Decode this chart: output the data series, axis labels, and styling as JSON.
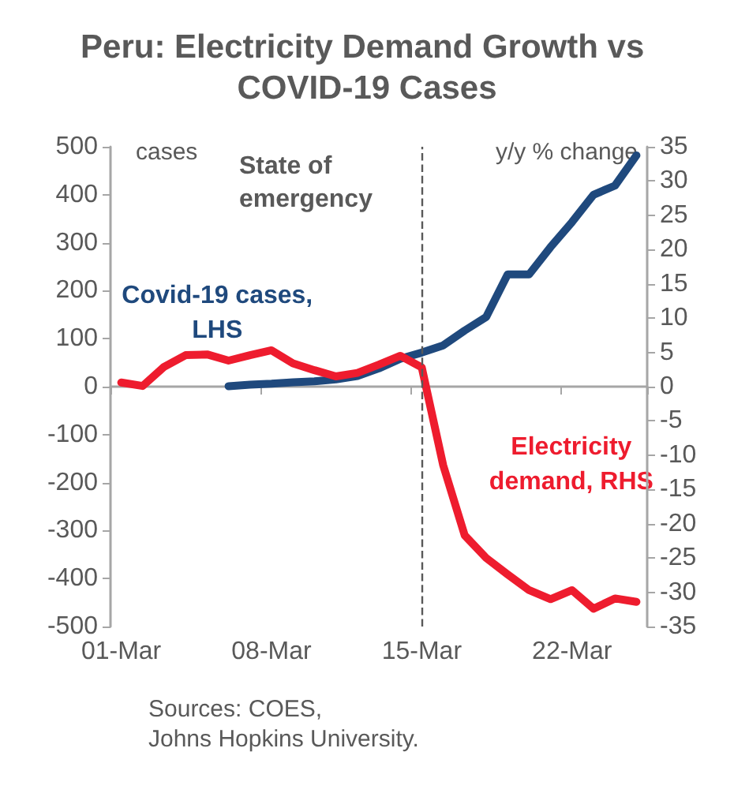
{
  "chart_data": {
    "type": "line",
    "title": "Peru: Electricity Demand Growth vs COVID-19 Cases",
    "ylabel": "cases",
    "y2label": "y/y % change",
    "categories": [
      "01-Mar",
      null,
      null,
      null,
      null,
      null,
      null,
      "08-Mar",
      null,
      null,
      null,
      null,
      null,
      null,
      "15-Mar",
      null,
      null,
      null,
      null,
      null,
      null,
      "22-Mar",
      null,
      null,
      null
    ],
    "series": [
      {
        "name": "Covid-19 cases, LHS",
        "color": "#1f497d",
        "values": [
          null,
          null,
          null,
          null,
          null,
          1,
          4,
          6,
          9,
          11,
          15,
          22,
          38,
          58,
          71,
          86,
          117,
          145,
          234,
          234,
          291,
          343,
          400,
          419,
          482
        ]
      },
      {
        "name": "Electricity demand, RHS",
        "color": "#ee1c2e",
        "axis": "y2",
        "values": [
          0.6,
          0.1,
          2.9,
          4.6,
          4.7,
          3.8,
          4.6,
          5.3,
          3.4,
          2.4,
          1.5,
          2.0,
          3.2,
          4.5,
          2.8,
          -11.5,
          -21.7,
          -25,
          -27.4,
          -29.7,
          -31,
          -29.7,
          -32.4,
          -30.9,
          -31.4
        ]
      }
    ],
    "ylim": [
      -500,
      500
    ],
    "yticks": [
      -500,
      -400,
      -300,
      -200,
      -100,
      0,
      100,
      200,
      300,
      400,
      500
    ],
    "y2lim": [
      -35,
      35
    ],
    "y2ticks": [
      -35,
      -30,
      -25,
      -20,
      -15,
      -10,
      -5,
      0,
      5,
      10,
      15,
      20,
      25,
      30,
      35
    ],
    "ref_lines": [
      {
        "axis": "x",
        "value": "15-Mar",
        "label": "State of emergency",
        "color": "#595959",
        "line_style": "dashed"
      }
    ],
    "annotations": [
      "Sources: COES, Johns Hopkins University."
    ],
    "grid": false,
    "legend": false,
    "marker": "none",
    "line_style": "solid"
  }
}
